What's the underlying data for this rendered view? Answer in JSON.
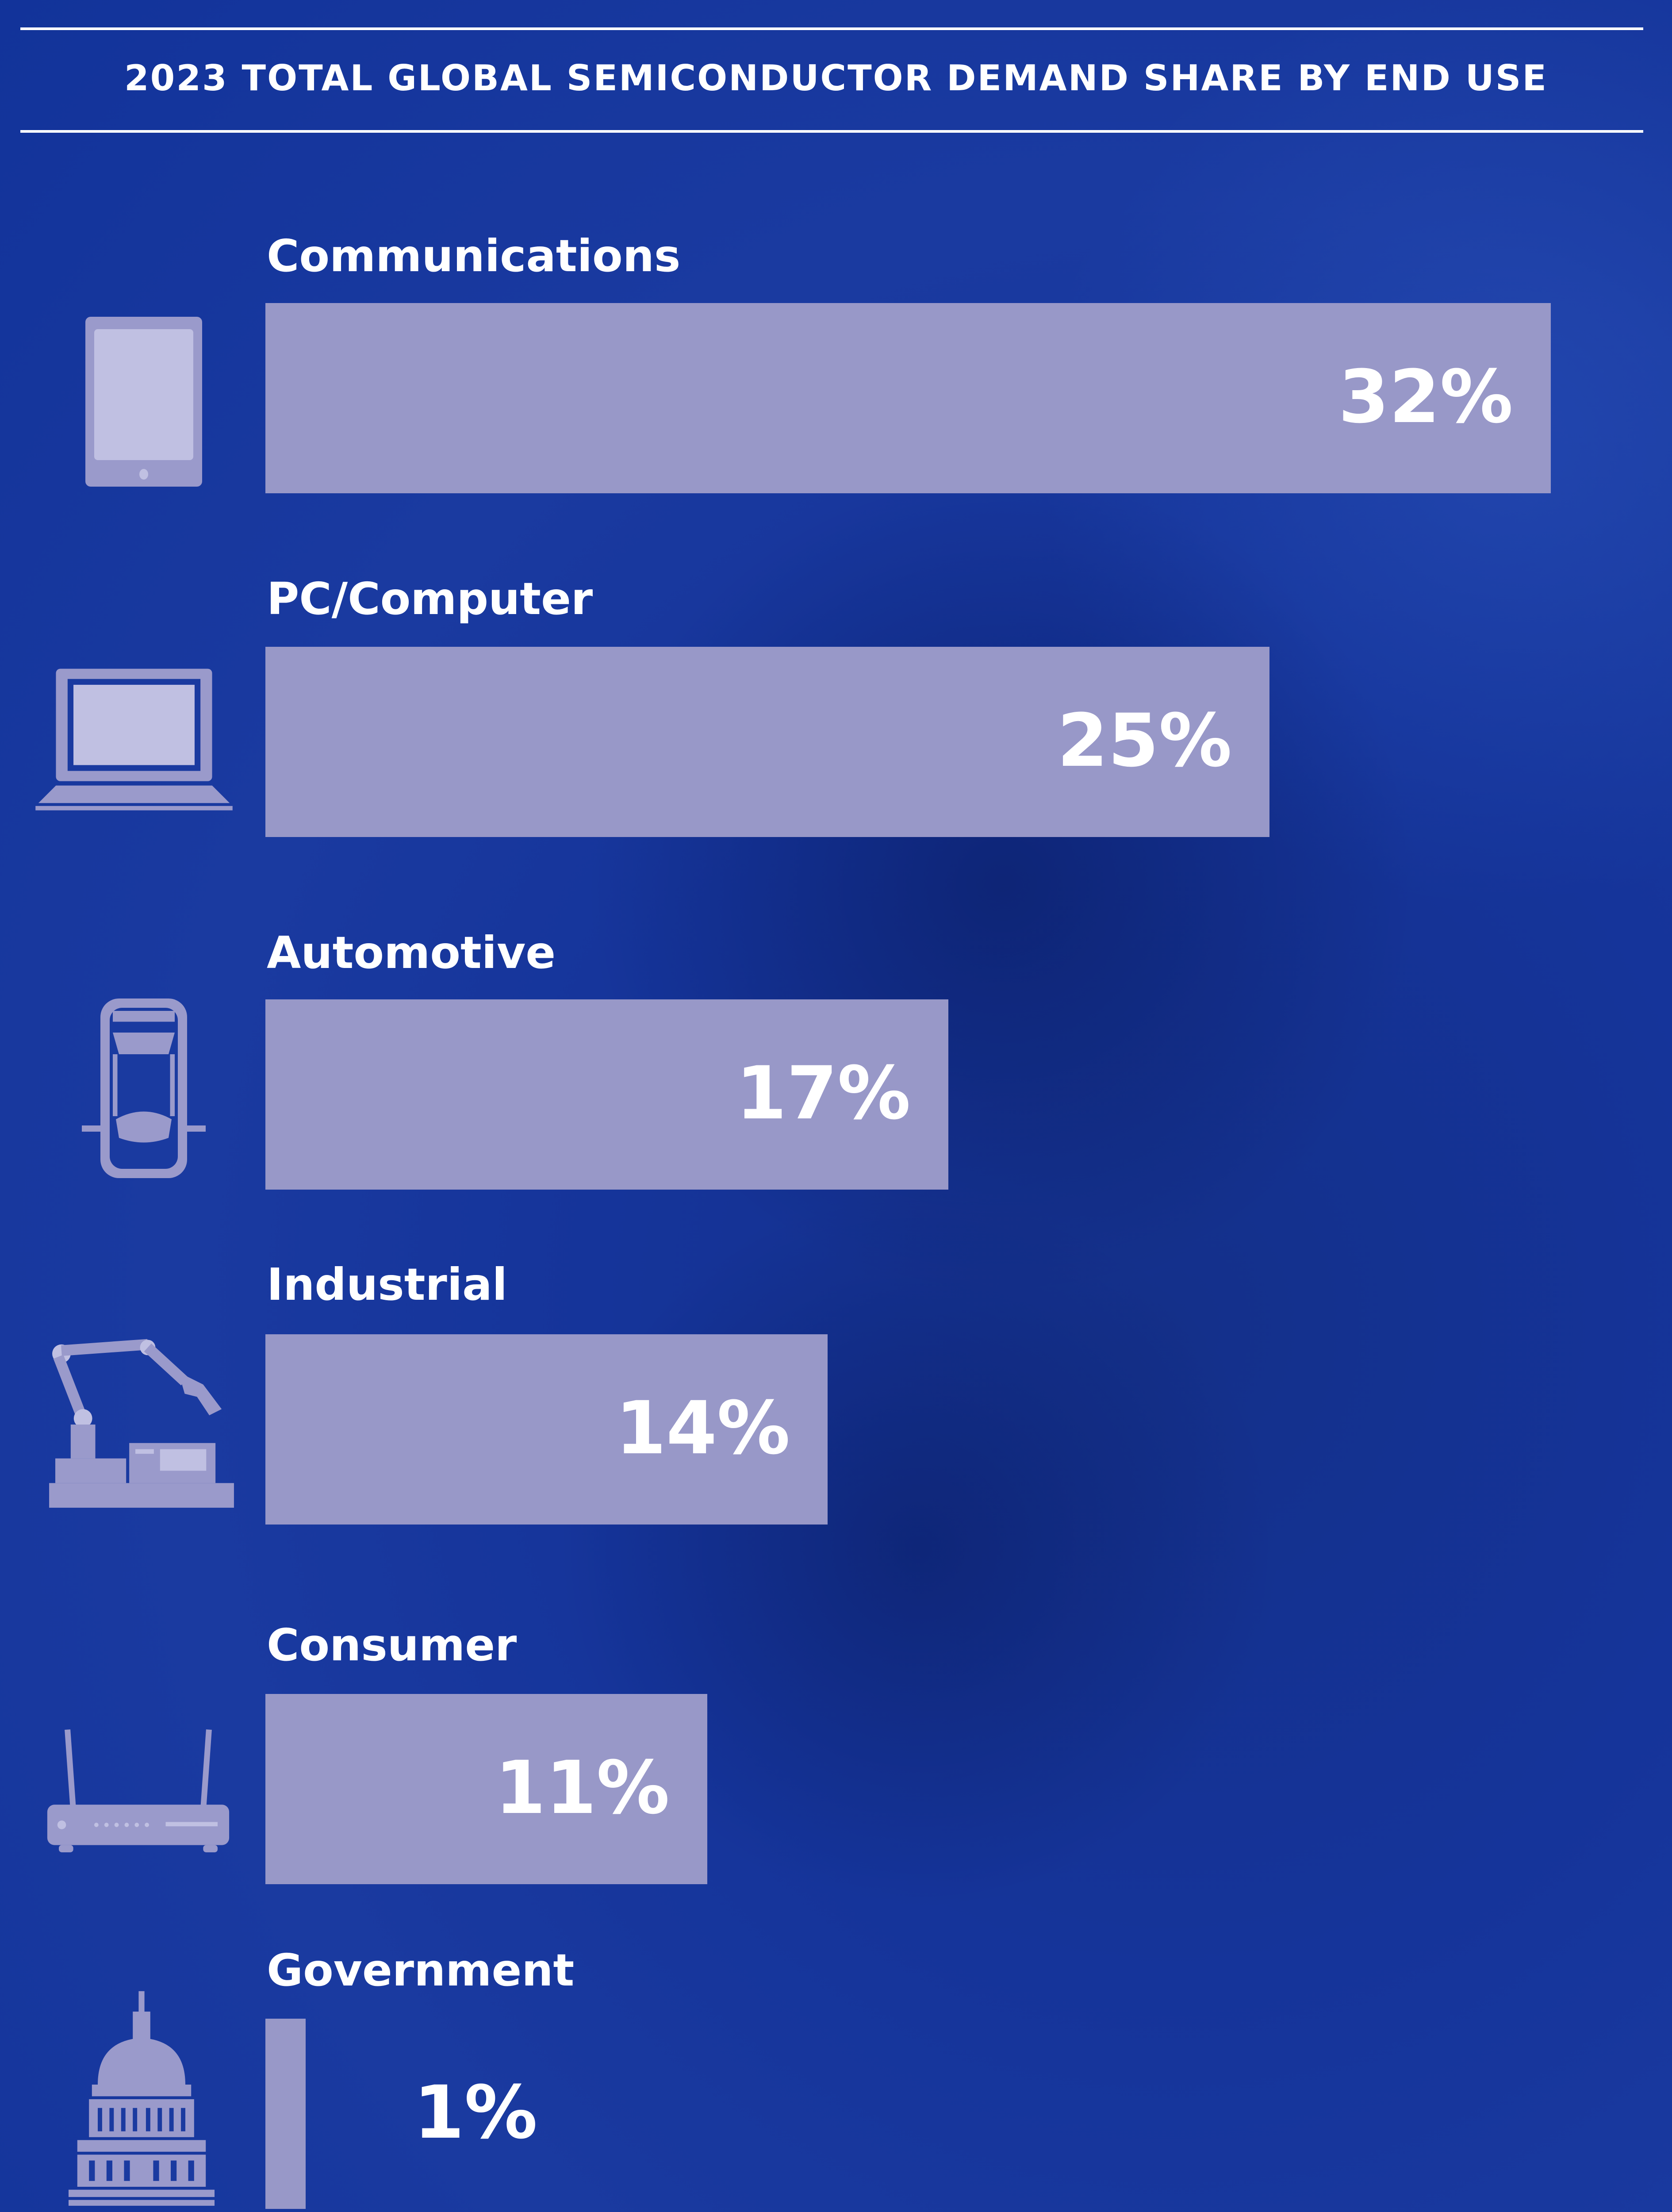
{
  "chart_data": {
    "type": "bar",
    "orientation": "horizontal",
    "title": "2023 TOTAL GLOBAL SEMICONDUCTOR DEMAND SHARE BY END USE",
    "categories": [
      "Communications",
      "PC/Computer",
      "Automotive",
      "Industrial",
      "Consumer",
      "Government"
    ],
    "values": [
      32,
      25,
      17,
      14,
      11,
      1
    ],
    "value_labels": [
      "32%",
      "25%",
      "17%",
      "14%",
      "11%",
      "1%"
    ],
    "icons": [
      "tablet-icon",
      "laptop-icon",
      "car-icon",
      "robot-arm-icon",
      "router-icon",
      "capitol-icon"
    ],
    "unit": "%",
    "grid": false,
    "legend": "none",
    "colors": {
      "bar": "#9898c8",
      "background": "#1a3aa0",
      "text": "#ffffff"
    }
  }
}
